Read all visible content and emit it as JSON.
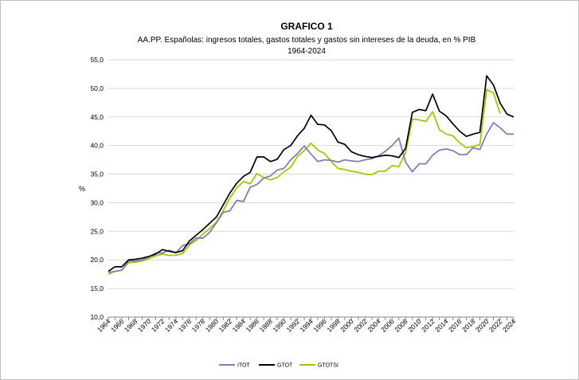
{
  "chart_data": {
    "type": "line",
    "title": "GRAFICO 1",
    "subtitle_line1": "AA.PP. Españolas:  ingresos totales, gastos totales y gastos sin intereses de la deuda,  en % PIB",
    "subtitle_line2": "1964-2024",
    "xlabel": "",
    "ylabel": "%",
    "ylim": [
      10,
      55
    ],
    "yticks": [
      "10,0",
      "15,0",
      "20,0",
      "25,0",
      "30,0",
      "35,0",
      "40,0",
      "45,0",
      "50,0",
      "55,0"
    ],
    "ytick_values": [
      10,
      15,
      20,
      25,
      30,
      35,
      40,
      45,
      50,
      55
    ],
    "xlim": [
      1964,
      2024
    ],
    "xtick_labels": [
      "1964",
      "1966",
      "1968",
      "1970",
      "1972",
      "1974",
      "1976",
      "1978",
      "1980",
      "1982",
      "1984",
      "1986",
      "1988",
      "1990",
      "1992",
      "1994",
      "1996",
      "1998",
      "2000",
      "2002",
      "2004",
      "2006",
      "2008",
      "2010",
      "2012",
      "2014",
      "2016",
      "2018",
      "2020",
      "2022",
      "2024"
    ],
    "grid": true,
    "legend_position": "bottom",
    "series": [
      {
        "name": "ITOT",
        "color": "#7f7fb4",
        "x": [
          1964,
          1965,
          1966,
          1967,
          1968,
          1969,
          1970,
          1971,
          1972,
          1973,
          1974,
          1975,
          1976,
          1977,
          1978,
          1979,
          1980,
          1981,
          1982,
          1983,
          1984,
          1985,
          1986,
          1987,
          1988,
          1989,
          1990,
          1991,
          1992,
          1993,
          1994,
          1995,
          1996,
          1997,
          1998,
          1999,
          2000,
          2001,
          2002,
          2003,
          2004,
          2005,
          2006,
          2007,
          2008,
          2009,
          2010,
          2011,
          2012,
          2013,
          2014,
          2015,
          2016,
          2017,
          2018,
          2019,
          2020,
          2021,
          2022,
          2023,
          2024
        ],
        "values": [
          17.8,
          18.0,
          18.2,
          19.8,
          19.8,
          20.0,
          20.5,
          21.2,
          21.2,
          21.7,
          21.2,
          22.5,
          22.8,
          23.8,
          23.8,
          24.8,
          26.5,
          28.3,
          28.6,
          30.4,
          30.2,
          32.7,
          33.2,
          34.3,
          34.7,
          35.7,
          36.0,
          37.5,
          38.6,
          39.9,
          38.5,
          37.2,
          37.5,
          37.4,
          37.1,
          37.5,
          37.3,
          37.2,
          37.5,
          37.7,
          38.2,
          39.0,
          40.0,
          41.3,
          37.1,
          35.4,
          36.8,
          36.8,
          38.3,
          39.2,
          39.4,
          39.1,
          38.4,
          38.4,
          39.6,
          39.3,
          42.0,
          44.0,
          43.1,
          42.0,
          42.0
        ]
      },
      {
        "name": "GTOT",
        "color": "#000000",
        "x": [
          1964,
          1965,
          1966,
          1967,
          1968,
          1969,
          1970,
          1971,
          1972,
          1973,
          1974,
          1975,
          1976,
          1977,
          1978,
          1979,
          1980,
          1981,
          1982,
          1983,
          1984,
          1985,
          1986,
          1987,
          1988,
          1989,
          1990,
          1991,
          1992,
          1993,
          1994,
          1995,
          1996,
          1997,
          1998,
          1999,
          2000,
          2001,
          2002,
          2003,
          2004,
          2005,
          2006,
          2007,
          2008,
          2009,
          2010,
          2011,
          2012,
          2013,
          2014,
          2015,
          2016,
          2017,
          2018,
          2019,
          2020,
          2021,
          2022,
          2023,
          2024
        ],
        "values": [
          18.0,
          18.8,
          18.8,
          20.0,
          20.1,
          20.3,
          20.6,
          21.0,
          21.8,
          21.5,
          21.3,
          21.6,
          23.3,
          24.3,
          25.3,
          26.4,
          27.5,
          29.6,
          31.7,
          33.4,
          34.6,
          35.3,
          38.0,
          38.0,
          37.2,
          37.6,
          39.3,
          40.0,
          41.7,
          43.0,
          45.3,
          43.7,
          43.6,
          42.6,
          40.6,
          40.2,
          38.9,
          38.4,
          38.1,
          37.9,
          38.1,
          38.3,
          38.2,
          37.9,
          39.5,
          45.8,
          46.3,
          46.1,
          49.0,
          46.0,
          45.2,
          43.8,
          42.5,
          41.6,
          42.0,
          42.3,
          52.2,
          50.6,
          47.4,
          45.5,
          45.0
        ]
      },
      {
        "name": "GTOTSI",
        "color": "#9acd00",
        "x": [
          1964,
          1965,
          1966,
          1967,
          1968,
          1969,
          1970,
          1971,
          1972,
          1973,
          1974,
          1975,
          1976,
          1977,
          1978,
          1979,
          1980,
          1981,
          1982,
          1983,
          1984,
          1985,
          1986,
          1987,
          1988,
          1989,
          1990,
          1991,
          1992,
          1993,
          1994,
          1995,
          1996,
          1997,
          1998,
          1999,
          2000,
          2001,
          2002,
          2003,
          2004,
          2005,
          2006,
          2007,
          2008,
          2009,
          2010,
          2011,
          2012,
          2013,
          2014,
          2015,
          2016,
          2017,
          2018,
          2019,
          2020,
          2021,
          2022
        ],
        "values": [
          17.5,
          18.0,
          18.2,
          19.5,
          19.6,
          19.8,
          20.2,
          20.7,
          21.0,
          20.8,
          20.8,
          21.1,
          22.6,
          23.4,
          24.5,
          25.5,
          26.6,
          28.6,
          30.8,
          32.6,
          33.7,
          33.3,
          35.1,
          34.4,
          34.0,
          34.4,
          35.4,
          36.2,
          38.1,
          39.1,
          40.4,
          39.2,
          38.6,
          37.2,
          36.0,
          35.8,
          35.5,
          35.3,
          35.0,
          34.9,
          35.5,
          35.5,
          36.5,
          36.3,
          38.8,
          44.6,
          44.5,
          44.2,
          45.9,
          42.8,
          42.0,
          41.7,
          40.5,
          39.6,
          39.8,
          40.2,
          49.8,
          49.2,
          45.6
        ]
      }
    ]
  }
}
